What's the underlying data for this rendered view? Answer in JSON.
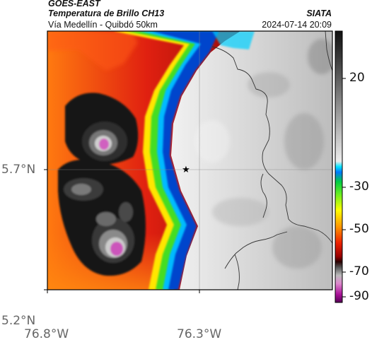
{
  "header": {
    "satellite": "GOES-EAST",
    "product": "Temperatura de Brillo CH13",
    "region": "Vía Medellín - Quibdó 50km",
    "org": "SIATA",
    "datetime": "2024-07-14 20:09"
  },
  "axes": {
    "x_ticks": [
      "76.8°W",
      "76.3°W"
    ],
    "y_ticks": [
      "5.7°N",
      "5.2°N"
    ]
  },
  "colorbar": {
    "ticks": [
      "20",
      "-30",
      "-50",
      "-70",
      "-90"
    ]
  },
  "marker": {
    "icon": "star-icon"
  }
}
